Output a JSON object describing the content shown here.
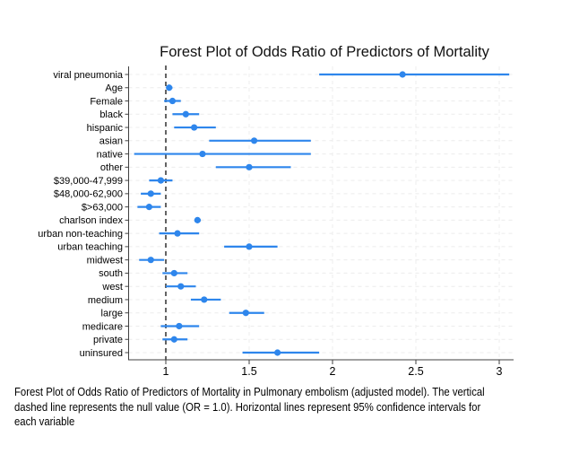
{
  "title": "Forest Plot of Odds Ratio of Predictors of Mortality",
  "caption_lines": [
    "Forest Plot of Odds Ratio of Predictors of Mortality in Pulmonary embolism (adjusted model). The vertical",
    "dashed line represents the null value (OR = 1.0). Horizontal lines represent 95% confidence intervals for",
    "each variable"
  ],
  "colors": {
    "marker": "#2E86EC",
    "grid": "#ECECEC",
    "axis": "#404040",
    "null_line": "#111111",
    "text": "#000000"
  },
  "chart_data": {
    "type": "scatter",
    "subtype": "forest-plot",
    "title": "Forest Plot of Odds Ratio of Predictors of Mortality",
    "xlabel": "",
    "ylabel": "",
    "xlim": [
      0.77,
      3.09
    ],
    "xticks": [
      1,
      1.5,
      2,
      2.5,
      3
    ],
    "xtick_labels": [
      "1",
      "1.5",
      "2",
      "2.5",
      "3"
    ],
    "null_line_or": 1.0,
    "grid": "dashed",
    "legend": "none",
    "categories": [
      "viral pneumonia",
      "Age",
      "Female",
      "black",
      "hispanic",
      "asian",
      "native",
      "other",
      "$39,000-47,999",
      "$48,000-62,900",
      "$>63,000",
      "charlson index",
      "urban non-teaching",
      "urban teaching",
      "midwest",
      "south",
      "west",
      "medium",
      "large",
      "medicare",
      "private",
      "uninsured"
    ],
    "series": [
      {
        "name": "odds_ratio",
        "values": [
          2.42,
          1.02,
          1.04,
          1.12,
          1.17,
          1.53,
          1.22,
          1.5,
          0.97,
          0.91,
          0.9,
          1.19,
          1.07,
          1.5,
          0.91,
          1.05,
          1.09,
          1.23,
          1.48,
          1.08,
          1.05,
          1.67
        ]
      },
      {
        "name": "ci_low",
        "values": [
          1.92,
          1.01,
          0.99,
          1.04,
          1.05,
          1.26,
          0.81,
          1.3,
          0.9,
          0.85,
          0.83,
          1.18,
          0.96,
          1.35,
          0.84,
          0.98,
          1.0,
          1.15,
          1.38,
          0.97,
          0.98,
          1.46
        ]
      },
      {
        "name": "ci_high",
        "values": [
          3.06,
          1.04,
          1.09,
          1.2,
          1.3,
          1.87,
          1.87,
          1.75,
          1.04,
          0.97,
          0.97,
          1.21,
          1.2,
          1.67,
          0.99,
          1.13,
          1.18,
          1.33,
          1.59,
          1.2,
          1.13,
          1.92
        ]
      }
    ]
  }
}
